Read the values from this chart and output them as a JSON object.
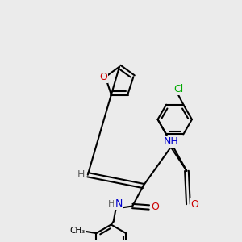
{
  "background_color": "#ebebeb",
  "bond_color": "#000000",
  "bond_width": 1.5,
  "figsize": [
    3.0,
    3.0
  ],
  "dpi": 100,
  "atom_colors": {
    "O": "#cc0000",
    "N": "#0000cc",
    "Cl": "#00aa00",
    "C": "#000000",
    "H": "#606060"
  }
}
